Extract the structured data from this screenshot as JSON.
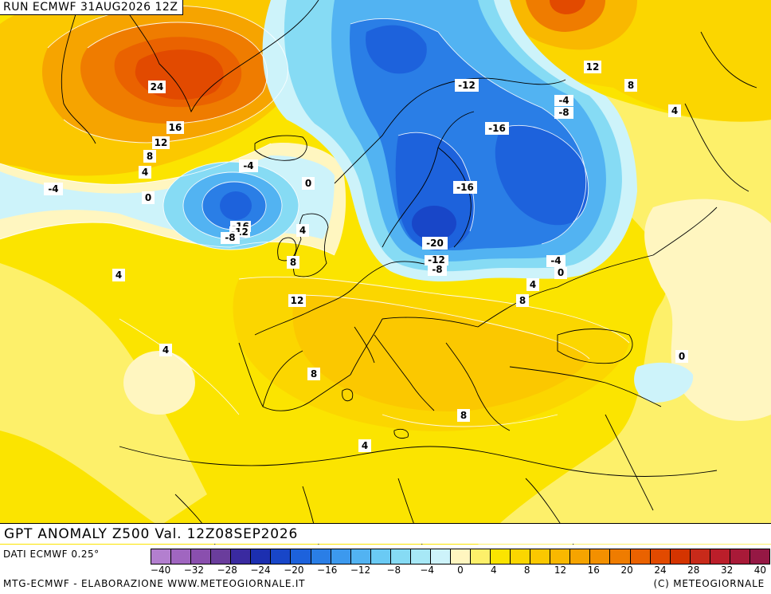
{
  "header": {
    "run_label": "RUN ECMWF 31AUG2026 12Z"
  },
  "map_title": "GPT ANOMALY Z500 Val. 12Z08SEP2026",
  "footer": {
    "data_source": "DATI ECMWF 0.25°",
    "producer": "MTG-ECMWF - ELABORAZIONE WWW.METEOGIORNALE.IT",
    "copyright": "(C) METEOGIORNALE"
  },
  "colors": {
    "neg": [
      "#b37fcf",
      "#a066c0",
      "#8a4fae",
      "#6a3d9c",
      "#3a2aa0",
      "#1c2fb0",
      "#1846c8",
      "#1d62dc",
      "#2a7ee6",
      "#3c99ee",
      "#52b3f2",
      "#6acaf4",
      "#86dbf4",
      "#a7e8f6",
      "#cdf3fa"
    ],
    "zero_band": "#fff6c0",
    "pos": [
      "#fdf06a",
      "#fbe400",
      "#fbd600",
      "#fbc800",
      "#f9b800",
      "#f6a400",
      "#f39000",
      "#ef7c00",
      "#ea6200",
      "#e24a00",
      "#d43400",
      "#c82a1a",
      "#bb1e2a",
      "#a81a38",
      "#951844"
    ]
  },
  "legend": {
    "ticks": [
      "-40",
      "-32",
      "-28",
      "-24",
      "-20",
      "-16",
      "-12",
      "-8",
      "-4",
      "0",
      "4",
      "8",
      "12",
      "16",
      "20",
      "24",
      "28",
      "32",
      "40"
    ]
  },
  "contour_labels": [
    {
      "t": "24"
    },
    {
      "t": "16"
    },
    {
      "t": "12"
    },
    {
      "t": "8"
    },
    {
      "t": "4"
    },
    {
      "t": "0"
    },
    {
      "t": "-4"
    },
    {
      "t": "-4"
    },
    {
      "t": "-16"
    },
    {
      "t": "-12"
    },
    {
      "t": "-8"
    },
    {
      "t": "0"
    },
    {
      "t": "4"
    },
    {
      "t": "8"
    },
    {
      "t": "4"
    },
    {
      "t": "12"
    },
    {
      "t": "4"
    },
    {
      "t": "8"
    },
    {
      "t": "-12"
    },
    {
      "t": "-4"
    },
    {
      "t": "-8"
    },
    {
      "t": "-16"
    },
    {
      "t": "-16"
    },
    {
      "t": "-20"
    },
    {
      "t": "-12"
    },
    {
      "t": "-8"
    },
    {
      "t": "12"
    },
    {
      "t": "8"
    },
    {
      "t": "4"
    },
    {
      "t": "-4"
    },
    {
      "t": "0"
    },
    {
      "t": "4"
    },
    {
      "t": "8"
    },
    {
      "t": "0"
    },
    {
      "t": "8"
    },
    {
      "t": "4"
    },
    {
      "t": "4"
    }
  ]
}
